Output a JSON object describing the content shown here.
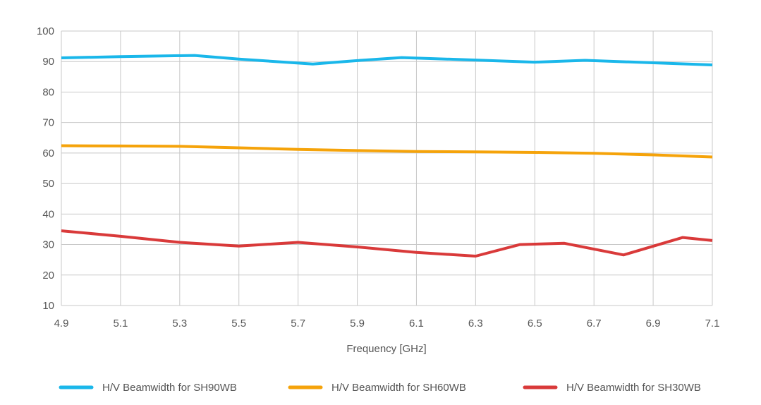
{
  "chart_data": {
    "type": "line",
    "title": "",
    "xlabel": "Frequency [GHz]",
    "ylabel": "",
    "xlim": [
      4.9,
      7.1
    ],
    "ylim": [
      10,
      100
    ],
    "x_ticks": [
      "4.9",
      "5.1",
      "5.3",
      "5.5",
      "5.7",
      "5.9",
      "6.1",
      "6.3",
      "6.5",
      "6.7",
      "6.9",
      "7.1"
    ],
    "y_ticks": [
      "100",
      "90",
      "80",
      "70",
      "60",
      "50",
      "40",
      "30",
      "20",
      "10"
    ],
    "grid": true,
    "legend_position": "bottom",
    "series": [
      {
        "name": "H/V Beamwidth for SH90WB",
        "color": "#1ab7ea",
        "x": [
          4.9,
          5.1,
          5.35,
          5.5,
          5.75,
          5.9,
          6.05,
          6.3,
          6.5,
          6.67,
          6.9,
          7.1
        ],
        "y": [
          91.2,
          91.6,
          92.0,
          90.8,
          89.2,
          90.3,
          91.3,
          90.5,
          89.8,
          90.4,
          89.6,
          88.9
        ]
      },
      {
        "name": "H/V Beamwidth for SH60WB",
        "color": "#f5a30a",
        "x": [
          4.9,
          5.1,
          5.3,
          5.5,
          5.7,
          5.9,
          6.1,
          6.3,
          6.5,
          6.7,
          6.9,
          7.1
        ],
        "y": [
          62.4,
          62.3,
          62.2,
          61.7,
          61.2,
          60.8,
          60.5,
          60.4,
          60.2,
          59.9,
          59.4,
          58.7
        ]
      },
      {
        "name": "H/V Beamwidth for SH30WB",
        "color": "#d93a3a",
        "x": [
          4.9,
          5.1,
          5.3,
          5.5,
          5.7,
          5.9,
          6.1,
          6.3,
          6.45,
          6.6,
          6.8,
          7.0,
          7.1
        ],
        "y": [
          34.5,
          32.7,
          30.7,
          29.5,
          30.7,
          29.2,
          27.4,
          26.2,
          30.0,
          30.4,
          26.6,
          32.3,
          31.3
        ]
      }
    ]
  }
}
